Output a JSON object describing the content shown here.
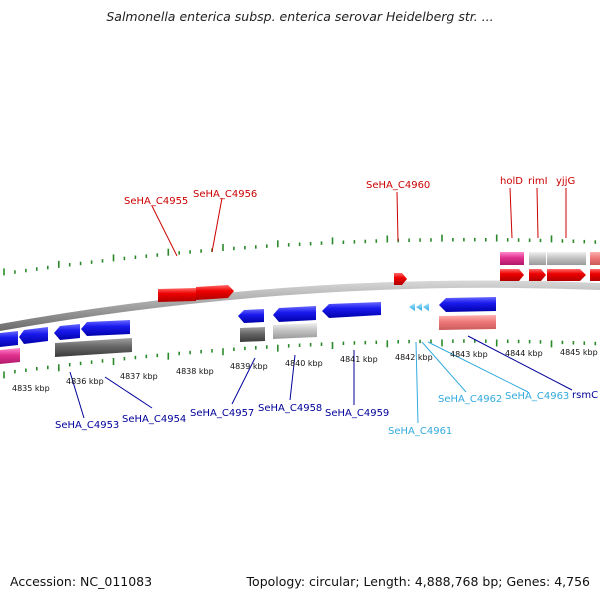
{
  "title": "Salmonella enterica subsp. enterica serovar Heidelberg str. ...",
  "footer": {
    "accession_label": "Accession:",
    "accession": "NC_011083",
    "topology_label": "Topology:",
    "topology": "circular",
    "length_label": "Length:",
    "length": "4,888,768 bp",
    "genes_label": "Genes:",
    "genes": "4,756"
  },
  "colors": {
    "top_label": "#cc0000",
    "bottom_label_dark": "#000099",
    "bottom_label_light": "#33aadd",
    "tick": "#2a8a2a",
    "backbone": "#888888"
  },
  "kbp_labels": [
    "4835 kbp",
    "4836 kbp",
    "4837 kbp",
    "4838 kbp",
    "4839 kbp",
    "4840 kbp",
    "4841 kbp",
    "4842 kbp",
    "4843 kbp",
    "4844 kbp",
    "4845 kbp"
  ],
  "top_genes": [
    "SeHA_C4955",
    "SeHA_C4956",
    "SeHA_C4960",
    "holD",
    "rimI",
    "yjjG"
  ],
  "bottom_genes": [
    "SeHA_C4953",
    "SeHA_C4954",
    "SeHA_C4957",
    "SeHA_C4958",
    "SeHA_C4959",
    "SeHA_C4961",
    "SeHA_C4962",
    "SeHA_C4963",
    "rsmC"
  ]
}
